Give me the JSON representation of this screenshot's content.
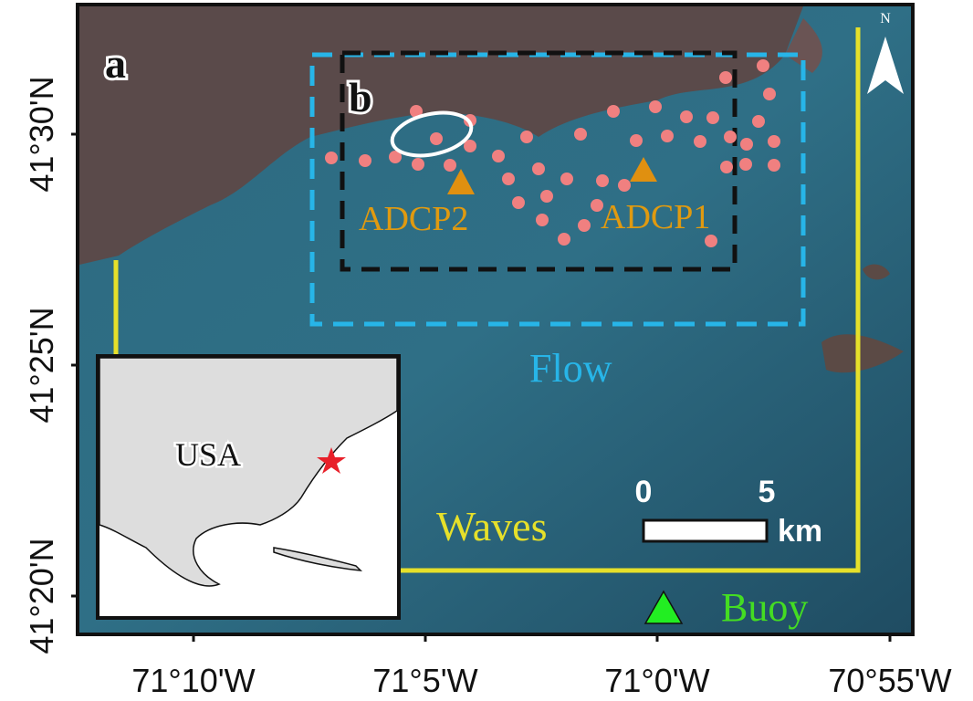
{
  "panels": {
    "a": "a",
    "b": "b"
  },
  "stations": {
    "adcp1": "ADCP1",
    "adcp2": "ADCP2",
    "buoy": "Buoy"
  },
  "domains": {
    "flow": "Flow",
    "waves": "Waves"
  },
  "inset": {
    "country": "USA"
  },
  "scale_bar": {
    "start": "0",
    "end": "5",
    "unit": "km"
  },
  "north": "N",
  "lat_labels": [
    "41°30'N",
    "41°25'N",
    "41°20'N"
  ],
  "lon_labels": [
    "71°10'W",
    "71°5'W",
    "71°0'W",
    "70°55'W"
  ]
}
